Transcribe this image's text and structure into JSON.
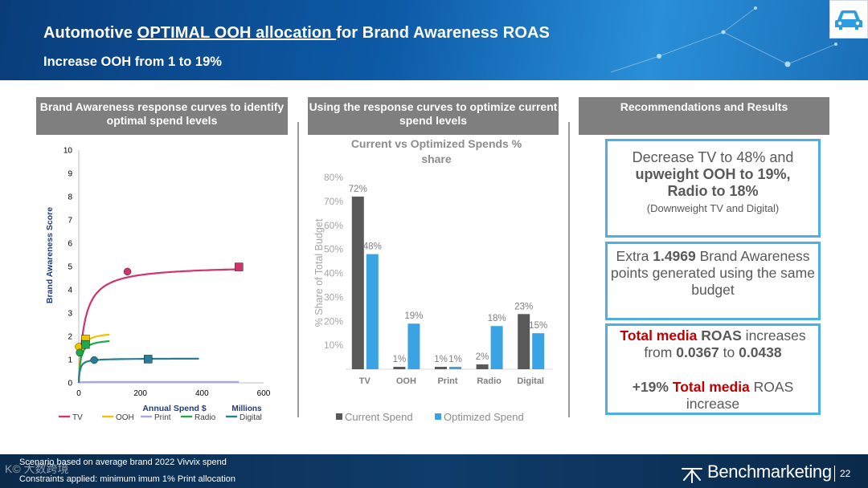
{
  "header": {
    "title_pre": "Automotive ",
    "title_underlined": "OPTIMAL OOH allocation ",
    "title_post": "for Brand Awareness ROAS",
    "subtitle": "Increase OOH from 1 to 19%",
    "icon": "car-icon"
  },
  "columns": {
    "col1_title": "Brand Awareness response curves to identify optimal spend levels",
    "col2_title": "Using the response curves to optimize current spend levels",
    "col3_title": "Recommendations and Results"
  },
  "chart_data": [
    {
      "type": "line",
      "title": "",
      "xlabel": "Annual Spend $",
      "xunit_label": "Millions",
      "ylabel": "Brand Awareness Score",
      "xlim": [
        0,
        600
      ],
      "ylim": [
        0,
        10
      ],
      "xticks": [
        "0",
        "200",
        "400",
        "600"
      ],
      "yticks": [
        "0",
        "1",
        "2",
        "3",
        "4",
        "5",
        "6",
        "7",
        "8",
        "9",
        "10"
      ],
      "series": [
        {
          "name": "TV",
          "color": "#d1336e",
          "asymptote": 5.05,
          "half": 18,
          "xmax": 520,
          "markers": [
            {
              "x": 158,
              "y": 4.78,
              "shape": "circle"
            },
            {
              "x": 520,
              "y": 4.98,
              "shape": "square"
            }
          ]
        },
        {
          "name": "OOH",
          "color": "#f2c200",
          "asymptote": 2.2,
          "half": 6,
          "xmax": 100,
          "markers": [
            {
              "x": 0,
              "y": 1.55,
              "shape": "circle"
            },
            {
              "x": 22,
              "y": 1.88,
              "shape": "square"
            }
          ]
        },
        {
          "name": "Print",
          "color": "#a7a9d6",
          "asymptote": 0.04,
          "half": 5,
          "xmax": 520,
          "markers": []
        },
        {
          "name": "Radio",
          "color": "#22a84a",
          "asymptote": 1.9,
          "half": 6,
          "xmax": 100,
          "markers": [
            {
              "x": 3,
              "y": 1.3,
              "shape": "circle"
            },
            {
              "x": 22,
              "y": 1.65,
              "shape": "square"
            }
          ]
        },
        {
          "name": "Digital",
          "color": "#2a7d95",
          "asymptote": 1.05,
          "half": 4,
          "xmax": 390,
          "markers": [
            {
              "x": 50,
              "y": 0.98,
              "shape": "circle"
            },
            {
              "x": 225,
              "y": 1.02,
              "shape": "square"
            }
          ]
        }
      ]
    },
    {
      "type": "bar",
      "title": "Current vs Optimized Spends % share",
      "ylabel": "% Share of Total Budget",
      "ylim": [
        0,
        80
      ],
      "yticks": [
        "",
        "10%",
        "20%",
        "30%",
        "40%",
        "50%",
        "60%",
        "70%",
        "80%"
      ],
      "categories": [
        "TV",
        "OOH",
        "Print",
        "Radio",
        "Digital"
      ],
      "series": [
        {
          "name": "Current Spend",
          "color": "#595959",
          "values": [
            72,
            1,
            1,
            2,
            23
          ],
          "labels": [
            "72%",
            "1%",
            "1%",
            "2%",
            "23%"
          ]
        },
        {
          "name": "Optimized Spend",
          "color": "#3aa3e3",
          "values": [
            48,
            19,
            1,
            18,
            15
          ],
          "labels": [
            "48%",
            "19%",
            "1%",
            "18%",
            "15%"
          ]
        }
      ]
    }
  ],
  "recommendations": {
    "box1_line1": "Decrease TV to 48% and",
    "box1_line2": "upweight OOH to 19%,",
    "box1_line3": "Radio to 18%",
    "box1_note": "(Downweight TV and Digital)",
    "box2_pre": "Extra ",
    "box2_value": "1.4969",
    "box2_post": " Brand Awareness points generated using the same budget",
    "box3_red1": "Total media",
    "box3_bold1": " ROAS",
    "box3_text1": " increases from ",
    "box3_from": "0.0367",
    "box3_to_word": " to ",
    "box3_to": "0.0438",
    "box3_pct": "+19% ",
    "box3_red2": "Total media",
    "box3_text2": " ROAS increase"
  },
  "footer": {
    "note1": "Scenario based on average brand 2022  Vivvix spend",
    "note2": "Constraints applied: minimum imum 1% Print allocation",
    "watermark": "K© 大数跨境",
    "brand": "Benchmarketing",
    "page": "22"
  }
}
